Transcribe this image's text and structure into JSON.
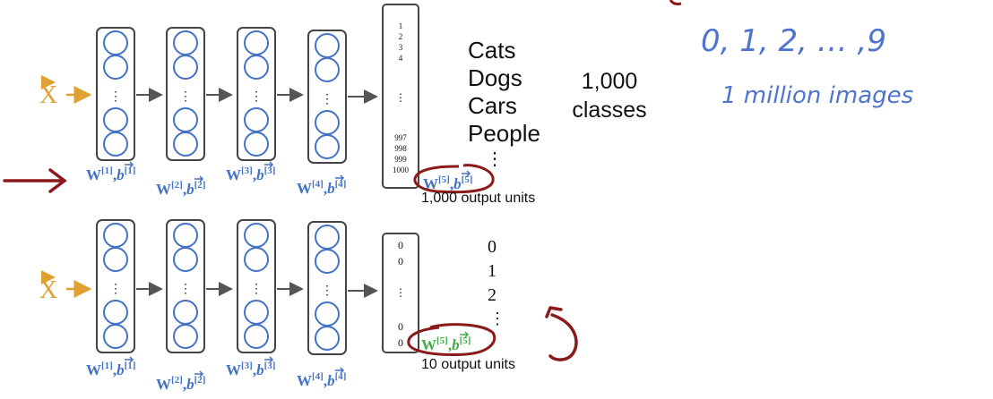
{
  "colors": {
    "blue": "#4472c4",
    "handBlue": "#4f74d0",
    "orange": "#e0a133",
    "red": "#8b1a1a",
    "green": "#3fae49",
    "gray": "#555555",
    "black": "#111111"
  },
  "input_label": "X",
  "top_network": {
    "output_top": [
      "1",
      "2",
      "3",
      "4"
    ],
    "output_mid": "⋮",
    "output_bottom": [
      "997",
      "998",
      "999",
      "1000"
    ],
    "weights": [
      {
        "w": "W",
        "sup": "[1]",
        "b": "b",
        "bsup": "[1]"
      },
      {
        "w": "W",
        "sup": "[2]",
        "b": "b",
        "bsup": "[2]"
      },
      {
        "w": "W",
        "sup": "[3]",
        "b": "b",
        "bsup": "[3]"
      },
      {
        "w": "W",
        "sup": "[4]",
        "b": "b",
        "bsup": "[4]"
      },
      {
        "w": "W",
        "sup": "[5]",
        "b": "b",
        "bsup": "[5]"
      }
    ],
    "output_units_label": "1,000 output units",
    "classes": [
      "Cats",
      "Dogs",
      "Cars",
      "People",
      "⋮"
    ],
    "class_count": "1,000",
    "class_count_label": "classes"
  },
  "bottom_network": {
    "output_top": [
      "0",
      "0"
    ],
    "output_mid": "⋮",
    "output_bottom": [
      "0",
      "0"
    ],
    "weights": [
      {
        "w": "W",
        "sup": "[1]",
        "b": "b",
        "bsup": "[1]"
      },
      {
        "w": "W",
        "sup": "[2]",
        "b": "b",
        "bsup": "[2]"
      },
      {
        "w": "W",
        "sup": "[3]",
        "b": "b",
        "bsup": "[3]"
      },
      {
        "w": "W",
        "sup": "[4]",
        "b": "b",
        "bsup": "[4]"
      },
      {
        "w": "W",
        "sup": "[5]",
        "b": "b",
        "bsup": "[5]"
      }
    ],
    "output_units_label": "10 output units",
    "classes": [
      "0",
      "1",
      "2",
      "⋮"
    ]
  },
  "notes": {
    "digits": "0, 1, 2, … ,9",
    "images": "1 million images"
  },
  "hidden_dots": "⋮"
}
